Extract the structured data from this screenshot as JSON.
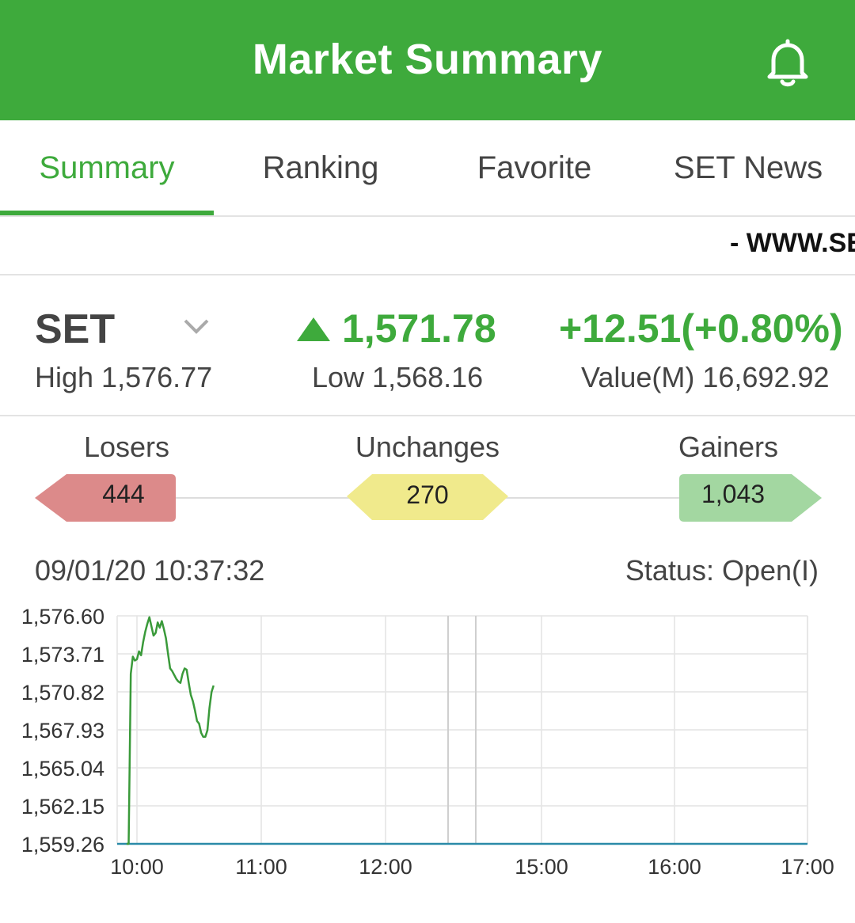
{
  "header": {
    "title": "Market Summary",
    "bell_icon": "bell-icon"
  },
  "tabs": [
    {
      "label": "Summary",
      "active": true
    },
    {
      "label": "Ranking",
      "active": false
    },
    {
      "label": "Favorite",
      "active": false
    },
    {
      "label": "SET News",
      "active": false
    }
  ],
  "ticker": {
    "text": "- WWW.SET"
  },
  "index": {
    "name": "SET",
    "direction": "up",
    "value": "1,571.78",
    "change": "+12.51(+0.80%)",
    "high": "High 1,576.77",
    "low": "Low 1,568.16",
    "value_m": "Value(M) 16,692.92"
  },
  "breadth": {
    "losers_label": "Losers",
    "losers": "444",
    "unchanged_label": "Unchanges",
    "unchanged": "270",
    "gainers_label": "Gainers",
    "gainers": "1,043"
  },
  "datetime": "09/01/20 10:37:32",
  "status": "Status: Open(I)",
  "colors": {
    "brand": "#3eaa3c",
    "losers": "#dc8a8a",
    "unchanged": "#f0ea8c",
    "gainers": "#a3d7a1",
    "line": "#3a9a3a",
    "baseline": "#2a8aa8"
  },
  "chart_data": {
    "type": "line",
    "title": "",
    "xlabel": "",
    "ylabel": "",
    "y_ticks": [
      "1,576.60",
      "1,573.71",
      "1,570.82",
      "1,567.93",
      "1,565.04",
      "1,562.15",
      "1,559.26"
    ],
    "ylim": [
      1559.26,
      1576.6
    ],
    "x_ticks": [
      "10:00",
      "11:00",
      "12:00",
      "15:00",
      "16:00",
      "17:00"
    ],
    "grid": true,
    "series": [
      {
        "name": "",
        "x": [
          "09:55",
          "09:56",
          "09:57",
          "09:58",
          "09:59",
          "10:00",
          "10:01",
          "10:02",
          "10:03",
          "10:04",
          "10:05",
          "10:06",
          "10:07",
          "10:08",
          "10:09",
          "10:10",
          "10:11",
          "10:12",
          "10:13",
          "10:14",
          "10:15",
          "10:16",
          "10:17",
          "10:18",
          "10:19",
          "10:20",
          "10:21",
          "10:22",
          "10:23",
          "10:24",
          "10:25",
          "10:26",
          "10:27",
          "10:28",
          "10:29",
          "10:30",
          "10:31",
          "10:32",
          "10:33",
          "10:34",
          "10:35",
          "10:36",
          "10:37"
        ],
        "values": [
          1559.26,
          1559.26,
          1572.2,
          1573.5,
          1573.2,
          1573.3,
          1573.9,
          1573.6,
          1574.6,
          1575.4,
          1576.0,
          1576.5,
          1575.8,
          1575.1,
          1575.3,
          1576.1,
          1575.7,
          1576.2,
          1575.6,
          1574.9,
          1573.7,
          1572.6,
          1572.4,
          1572.1,
          1571.8,
          1571.6,
          1571.5,
          1572.2,
          1572.6,
          1572.5,
          1571.5,
          1570.6,
          1570.1,
          1569.4,
          1568.6,
          1568.4,
          1567.7,
          1567.4,
          1567.4,
          1567.9,
          1569.6,
          1570.8,
          1571.3
        ]
      }
    ]
  }
}
